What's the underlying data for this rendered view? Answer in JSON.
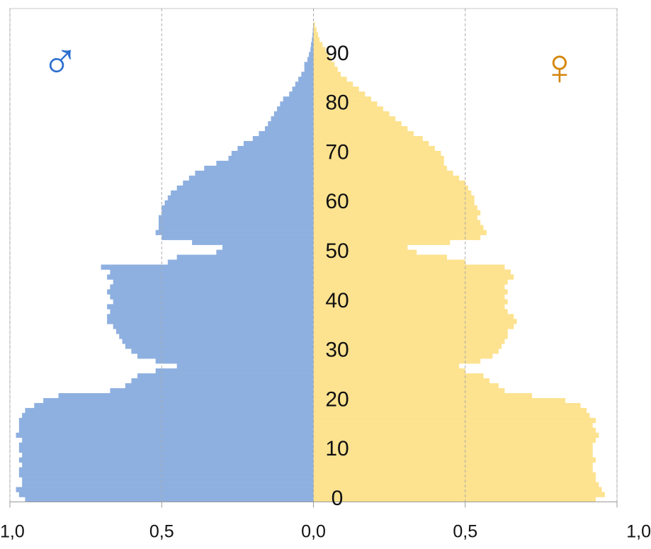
{
  "chart_data": {
    "type": "pyramid",
    "male_symbol": "♂",
    "female_symbol": "♀",
    "y": [
      0,
      1,
      2,
      3,
      4,
      5,
      6,
      7,
      8,
      9,
      10,
      11,
      12,
      13,
      14,
      15,
      16,
      17,
      18,
      19,
      20,
      21,
      22,
      23,
      24,
      25,
      26,
      27,
      28,
      29,
      30,
      31,
      32,
      33,
      34,
      35,
      36,
      37,
      38,
      39,
      40,
      41,
      42,
      43,
      44,
      45,
      46,
      47,
      48,
      49,
      50,
      51,
      52,
      53,
      54,
      55,
      56,
      57,
      58,
      59,
      60,
      61,
      62,
      63,
      64,
      65,
      66,
      67,
      68,
      69,
      70,
      71,
      72,
      73,
      74,
      75,
      76,
      77,
      78,
      79,
      80,
      81,
      82,
      83,
      84,
      85,
      86,
      87,
      88,
      89,
      90,
      91,
      92,
      93,
      94,
      95,
      96
    ],
    "series": [
      {
        "color": "#8eb0e0",
        "values": [
          -0.95,
          -0.97,
          -0.98,
          -0.96,
          -0.96,
          -0.97,
          -0.97,
          -0.96,
          -0.97,
          -0.96,
          -0.97,
          -0.97,
          -0.96,
          -0.98,
          -0.97,
          -0.97,
          -0.97,
          -0.96,
          -0.95,
          -0.92,
          -0.89,
          -0.84,
          -0.67,
          -0.62,
          -0.6,
          -0.58,
          -0.52,
          -0.45,
          -0.52,
          -0.58,
          -0.6,
          -0.62,
          -0.63,
          -0.64,
          -0.65,
          -0.66,
          -0.68,
          -0.68,
          -0.67,
          -0.68,
          -0.66,
          -0.67,
          -0.68,
          -0.67,
          -0.66,
          -0.68,
          -0.67,
          -0.7,
          -0.48,
          -0.45,
          -0.32,
          -0.3,
          -0.4,
          -0.5,
          -0.52,
          -0.51,
          -0.51,
          -0.51,
          -0.5,
          -0.5,
          -0.49,
          -0.48,
          -0.47,
          -0.45,
          -0.43,
          -0.41,
          -0.39,
          -0.36,
          -0.32,
          -0.28,
          -0.27,
          -0.25,
          -0.23,
          -0.2,
          -0.18,
          -0.16,
          -0.15,
          -0.14,
          -0.13,
          -0.12,
          -0.11,
          -0.1,
          -0.08,
          -0.07,
          -0.06,
          -0.05,
          -0.04,
          -0.03,
          -0.03,
          -0.02,
          -0.015,
          -0.01,
          -0.008,
          -0.005,
          -0.003,
          -0.002,
          -0.001
        ]
      },
      {
        "color": "#fde28f",
        "values": [
          0.93,
          0.96,
          0.95,
          0.94,
          0.93,
          0.93,
          0.92,
          0.92,
          0.93,
          0.92,
          0.92,
          0.92,
          0.93,
          0.94,
          0.93,
          0.92,
          0.93,
          0.91,
          0.9,
          0.88,
          0.83,
          0.72,
          0.63,
          0.61,
          0.58,
          0.56,
          0.5,
          0.48,
          0.55,
          0.59,
          0.61,
          0.62,
          0.63,
          0.64,
          0.64,
          0.66,
          0.67,
          0.66,
          0.64,
          0.63,
          0.64,
          0.63,
          0.64,
          0.63,
          0.64,
          0.66,
          0.65,
          0.63,
          0.5,
          0.44,
          0.34,
          0.31,
          0.45,
          0.55,
          0.57,
          0.56,
          0.55,
          0.54,
          0.55,
          0.54,
          0.53,
          0.53,
          0.52,
          0.51,
          0.5,
          0.48,
          0.46,
          0.44,
          0.43,
          0.43,
          0.42,
          0.4,
          0.38,
          0.36,
          0.33,
          0.31,
          0.29,
          0.27,
          0.25,
          0.23,
          0.21,
          0.19,
          0.17,
          0.15,
          0.13,
          0.11,
          0.09,
          0.08,
          0.07,
          0.06,
          0.05,
          0.04,
          0.03,
          0.02,
          0.015,
          0.01,
          0.005
        ]
      }
    ],
    "xlim": [
      -1,
      1
    ],
    "xticks": [
      {
        "value": -1,
        "label": "1,0"
      },
      {
        "value": -0.5,
        "label": "0,5"
      },
      {
        "value": 0,
        "label": "0,0"
      },
      {
        "value": 0.5,
        "label": "0,5"
      },
      {
        "value": 1,
        "label": "1,0"
      }
    ],
    "ylim": [
      -0.5,
      99.3
    ],
    "yticks": [
      0,
      10,
      20,
      30,
      40,
      50,
      60,
      70,
      80,
      90
    ],
    "grid": true,
    "symbol_colors": [
      "#2c6fcf",
      "#d4860b"
    ]
  }
}
